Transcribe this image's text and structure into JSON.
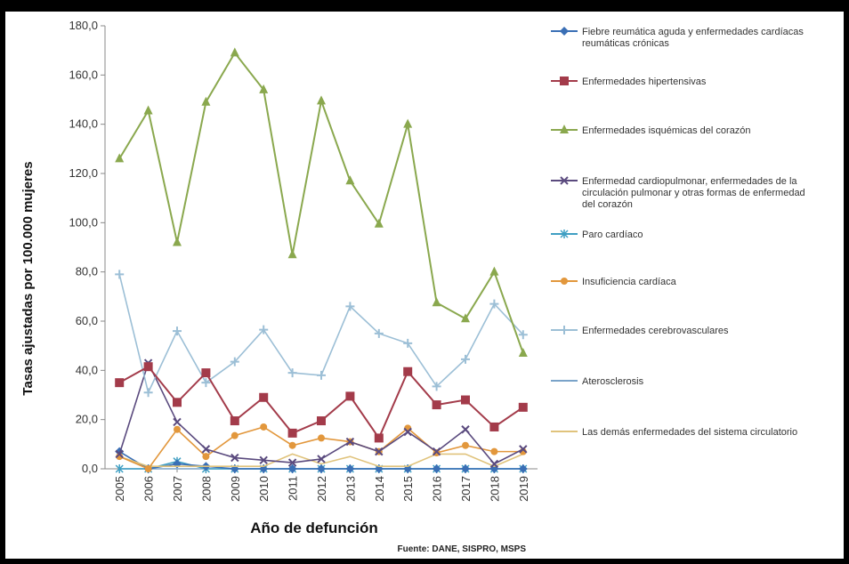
{
  "chart_data": {
    "type": "line",
    "title": "",
    "xlabel": "Año de defunción",
    "ylabel": "Tasas ajustadas por 100.000 mujeres",
    "source": "Fuente: DANE, SISPRO, MSPS",
    "x": [
      "2005",
      "2006",
      "2007",
      "2008",
      "2009",
      "2010",
      "2011",
      "2012",
      "2013",
      "2014",
      "2015",
      "2016",
      "2017",
      "2018",
      "2019"
    ],
    "ylim": [
      0,
      180
    ],
    "yticks": [
      "0,0",
      "20,0",
      "40,0",
      "60,0",
      "80,0",
      "100,0",
      "120,0",
      "140,0",
      "160,0",
      "180,0"
    ],
    "legend_position": "right",
    "series": [
      {
        "name": "Fiebre reumática aguda y enfermedades cardíacas reumáticas crónicas",
        "color": "#3a6fb5",
        "marker": "diamond",
        "values": [
          7,
          0,
          2,
          1,
          0,
          0,
          0,
          0,
          0,
          0,
          0,
          0,
          0,
          0,
          0
        ]
      },
      {
        "name": "Enfermedades hipertensivas",
        "color": "#a33b4a",
        "marker": "square",
        "values": [
          35,
          41.5,
          27,
          39,
          19.5,
          29,
          14.5,
          19.5,
          29.5,
          12.5,
          39.5,
          26,
          28,
          17,
          25
        ]
      },
      {
        "name": "Enfermedades isquémicas del corazón",
        "color": "#8aa84e",
        "marker": "triangle",
        "values": [
          126,
          145.5,
          92,
          149,
          169,
          154,
          87,
          149.5,
          117,
          99.5,
          140,
          67.5,
          61,
          80,
          47
        ]
      },
      {
        "name": "Enfermedad cardiopulmonar, enfermedades de la circulación pulmonar y otras formas de enfermedad del corazón",
        "color": "#5a4a7e",
        "marker": "cross",
        "values": [
          6,
          43,
          19,
          8,
          4.5,
          3.5,
          2.5,
          4,
          11,
          7,
          15,
          7,
          16,
          2,
          8
        ]
      },
      {
        "name": "Paro cardíaco",
        "color": "#3f9fc3",
        "marker": "star",
        "values": [
          0,
          0,
          3,
          0,
          0,
          0,
          0,
          0,
          0,
          0,
          0,
          0,
          0,
          0,
          0
        ]
      },
      {
        "name": "Insuficiencia cardíaca",
        "color": "#e2973c",
        "marker": "circle",
        "values": [
          5,
          0,
          16,
          5,
          13.5,
          17,
          9.5,
          12.5,
          11,
          7,
          16.5,
          6.5,
          9.5,
          7,
          7
        ]
      },
      {
        "name": "Enfermedades cerebrovasculares",
        "color": "#9cbfd6",
        "marker": "plus",
        "values": [
          79,
          31,
          56,
          35,
          43.5,
          56.5,
          39,
          38,
          66,
          55,
          51,
          33.5,
          44.5,
          67,
          54.5
        ]
      },
      {
        "name": "Aterosclerosis",
        "color": "#7aa3c9",
        "marker": "none",
        "values": [
          0,
          0,
          0,
          0,
          0,
          0,
          0,
          0,
          0,
          0,
          0,
          0,
          0,
          0,
          0
        ]
      },
      {
        "name": "Las demás enfermedades del sistema circulatorio",
        "color": "#e0c37c",
        "marker": "none",
        "values": [
          5,
          1,
          1,
          1,
          1,
          1,
          6,
          2,
          5,
          1,
          1,
          6,
          6,
          1,
          6
        ]
      }
    ]
  }
}
